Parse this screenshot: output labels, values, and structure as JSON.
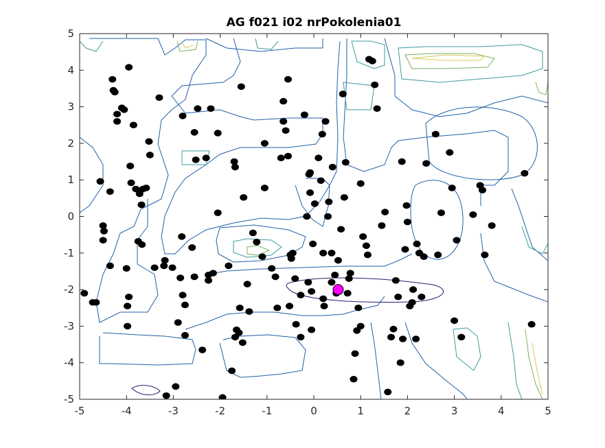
{
  "chart_data": {
    "type": "scatter",
    "title": "AG f021 i02 nrPokolenia01",
    "xlim": [
      -5,
      5
    ],
    "ylim": [
      -5,
      5
    ],
    "xticks": [
      -5,
      -4,
      -3,
      -2,
      -1,
      0,
      1,
      2,
      3,
      4,
      5
    ],
    "yticks": [
      -5,
      -4,
      -3,
      -2,
      -1,
      0,
      1,
      2,
      3,
      4,
      5
    ],
    "grid": false,
    "contour_colors": [
      "#2a1a6e",
      "#1f5fa8",
      "#3b9c9c",
      "#7ab05a",
      "#d8c85a"
    ],
    "series": [
      {
        "marker_color": "#000000",
        "points": [
          [
            -4.9,
            -2.1
          ],
          [
            -4.72,
            -2.35
          ],
          [
            -4.65,
            -2.35
          ],
          [
            -4.56,
            0.96
          ],
          [
            -4.5,
            -0.25
          ],
          [
            -4.48,
            -0.4
          ],
          [
            -4.5,
            -0.65
          ],
          [
            -4.35,
            0.68
          ],
          [
            -4.35,
            -1.35
          ],
          [
            -4.3,
            3.75
          ],
          [
            -4.28,
            3.45
          ],
          [
            -4.25,
            3.4
          ],
          [
            -4.2,
            2.8
          ],
          [
            -4.2,
            2.6
          ],
          [
            -4.1,
            2.97
          ],
          [
            -4.05,
            2.92
          ],
          [
            -4.0,
            -1.42
          ],
          [
            -3.95,
            -2.2
          ],
          [
            -3.98,
            -2.45
          ],
          [
            -3.98,
            -3.0
          ],
          [
            -3.92,
            1.38
          ],
          [
            -3.9,
            0.92
          ],
          [
            -3.95,
            4.08
          ],
          [
            -3.85,
            2.5
          ],
          [
            -3.8,
            0.75
          ],
          [
            -3.75,
            -0.68
          ],
          [
            -3.72,
            0.62
          ],
          [
            -3.68,
            0.32
          ],
          [
            -3.67,
            -0.77
          ],
          [
            -3.65,
            0.75
          ],
          [
            -3.58,
            0.78
          ],
          [
            -3.5,
            1.68
          ],
          [
            -3.52,
            2.05
          ],
          [
            -3.4,
            -1.4
          ],
          [
            -3.3,
            3.25
          ],
          [
            -3.2,
            -1.35
          ],
          [
            -3.18,
            -1.2
          ],
          [
            -3.15,
            -4.9
          ],
          [
            -3.02,
            -1.4
          ],
          [
            -2.95,
            -4.65
          ],
          [
            -2.9,
            -2.9
          ],
          [
            -2.85,
            -1.68
          ],
          [
            -2.82,
            -0.55
          ],
          [
            -2.8,
            2.75
          ],
          [
            -2.8,
            -2.15
          ],
          [
            -2.75,
            -2.42
          ],
          [
            -2.75,
            -3.25
          ],
          [
            -2.6,
            -0.85
          ],
          [
            -2.55,
            2.3
          ],
          [
            -2.55,
            -1.65
          ],
          [
            -2.52,
            1.55
          ],
          [
            -2.48,
            2.95
          ],
          [
            -2.38,
            -3.65
          ],
          [
            -2.3,
            1.6
          ],
          [
            -2.25,
            -1.6
          ],
          [
            -2.25,
            -1.75
          ],
          [
            -2.2,
            2.95
          ],
          [
            -2.15,
            -1.55
          ],
          [
            -2.05,
            2.28
          ],
          [
            -2.05,
            0.1
          ],
          [
            -1.95,
            -4.95
          ],
          [
            -1.82,
            -1.35
          ],
          [
            -1.75,
            -4.22
          ],
          [
            -1.7,
            1.5
          ],
          [
            -1.68,
            1.35
          ],
          [
            -1.68,
            -3.3
          ],
          [
            -1.65,
            -3.1
          ],
          [
            -1.6,
            -3.18
          ],
          [
            -1.58,
            -2.5
          ],
          [
            -1.55,
            3.55
          ],
          [
            -1.52,
            -3.45
          ],
          [
            -1.5,
            0.52
          ],
          [
            -1.42,
            -1.85
          ],
          [
            -1.38,
            -2.6
          ],
          [
            -1.3,
            -0.45
          ],
          [
            -1.22,
            -0.7
          ],
          [
            -1.1,
            -1.1
          ],
          [
            -1.05,
            2.0
          ],
          [
            -1.05,
            0.78
          ],
          [
            -0.9,
            -1.42
          ],
          [
            -0.82,
            -1.65
          ],
          [
            -0.78,
            -2.5
          ],
          [
            -0.7,
            1.6
          ],
          [
            -0.65,
            3.15
          ],
          [
            -0.65,
            2.6
          ],
          [
            -0.6,
            2.35
          ],
          [
            -0.55,
            3.75
          ],
          [
            -0.55,
            1.65
          ],
          [
            -0.52,
            -2.45
          ],
          [
            -0.5,
            -1.05
          ],
          [
            -0.48,
            -1.15
          ],
          [
            -0.45,
            -1.0
          ],
          [
            -0.4,
            -1.7
          ],
          [
            -0.38,
            -2.95
          ],
          [
            -0.28,
            -3.3
          ],
          [
            -0.28,
            -2.15
          ],
          [
            -0.2,
            2.78
          ],
          [
            -0.15,
            0.0
          ],
          [
            -0.12,
            -1.8
          ],
          [
            -0.1,
            1.15
          ],
          [
            -0.08,
            1.2
          ],
          [
            -0.08,
            0.65
          ],
          [
            -0.05,
            -3.1
          ],
          [
            -0.05,
            -2.05
          ],
          [
            -0.02,
            -0.75
          ],
          [
            0.02,
            0.35
          ],
          [
            0.1,
            1.6
          ],
          [
            0.15,
            0.98
          ],
          [
            0.18,
            2.25
          ],
          [
            0.2,
            -1.0
          ],
          [
            0.2,
            -2.25
          ],
          [
            0.22,
            -2.45
          ],
          [
            0.25,
            2.6
          ],
          [
            0.3,
            0.0
          ],
          [
            0.32,
            0.4
          ],
          [
            0.38,
            -1.0
          ],
          [
            0.38,
            -1.8
          ],
          [
            0.4,
            1.35
          ],
          [
            0.45,
            -1.6
          ],
          [
            0.48,
            -2.1
          ],
          [
            0.52,
            -1.2
          ],
          [
            0.58,
            -0.35
          ],
          [
            0.62,
            3.35
          ],
          [
            0.65,
            0.52
          ],
          [
            0.68,
            1.48
          ],
          [
            0.72,
            -2.1
          ],
          [
            0.75,
            -1.7
          ],
          [
            0.78,
            -1.55
          ],
          [
            0.85,
            -4.45
          ],
          [
            0.88,
            -3.75
          ],
          [
            0.92,
            -3.12
          ],
          [
            0.95,
            -2.5
          ],
          [
            1.0,
            -3.0
          ],
          [
            1.0,
            0.9
          ],
          [
            1.05,
            -0.55
          ],
          [
            1.12,
            -0.8
          ],
          [
            1.15,
            -1.05
          ],
          [
            1.18,
            4.3
          ],
          [
            1.25,
            4.25
          ],
          [
            1.3,
            3.6
          ],
          [
            1.35,
            2.95
          ],
          [
            1.45,
            -0.25
          ],
          [
            1.52,
            0.12
          ],
          [
            1.58,
            -4.8
          ],
          [
            1.65,
            -3.3
          ],
          [
            1.7,
            -3.08
          ],
          [
            1.75,
            -1.75
          ],
          [
            1.8,
            -2.2
          ],
          [
            1.85,
            -4.0
          ],
          [
            1.88,
            1.5
          ],
          [
            1.9,
            -3.35
          ],
          [
            1.95,
            -0.9
          ],
          [
            1.98,
            0.3
          ],
          [
            2.0,
            -0.15
          ],
          [
            2.05,
            -2.45
          ],
          [
            2.1,
            -2.35
          ],
          [
            2.12,
            -2.0
          ],
          [
            2.18,
            -3.35
          ],
          [
            2.2,
            -0.75
          ],
          [
            2.25,
            -1.0
          ],
          [
            2.3,
            -2.2
          ],
          [
            2.35,
            -1.1
          ],
          [
            2.4,
            1.45
          ],
          [
            2.6,
            2.25
          ],
          [
            2.65,
            -1.05
          ],
          [
            2.72,
            0.1
          ],
          [
            2.9,
            1.75
          ],
          [
            2.95,
            0.78
          ],
          [
            3.0,
            -2.85
          ],
          [
            3.05,
            -0.65
          ],
          [
            3.15,
            -3.3
          ],
          [
            3.4,
            0.05
          ],
          [
            3.55,
            0.85
          ],
          [
            3.6,
            0.72
          ],
          [
            3.65,
            -1.05
          ],
          [
            3.8,
            -0.25
          ],
          [
            4.5,
            1.18
          ],
          [
            4.65,
            -2.95
          ]
        ]
      },
      {
        "marker_color": "#ff00ff",
        "points": [
          [
            0.52,
            -2.0
          ]
        ]
      }
    ]
  }
}
